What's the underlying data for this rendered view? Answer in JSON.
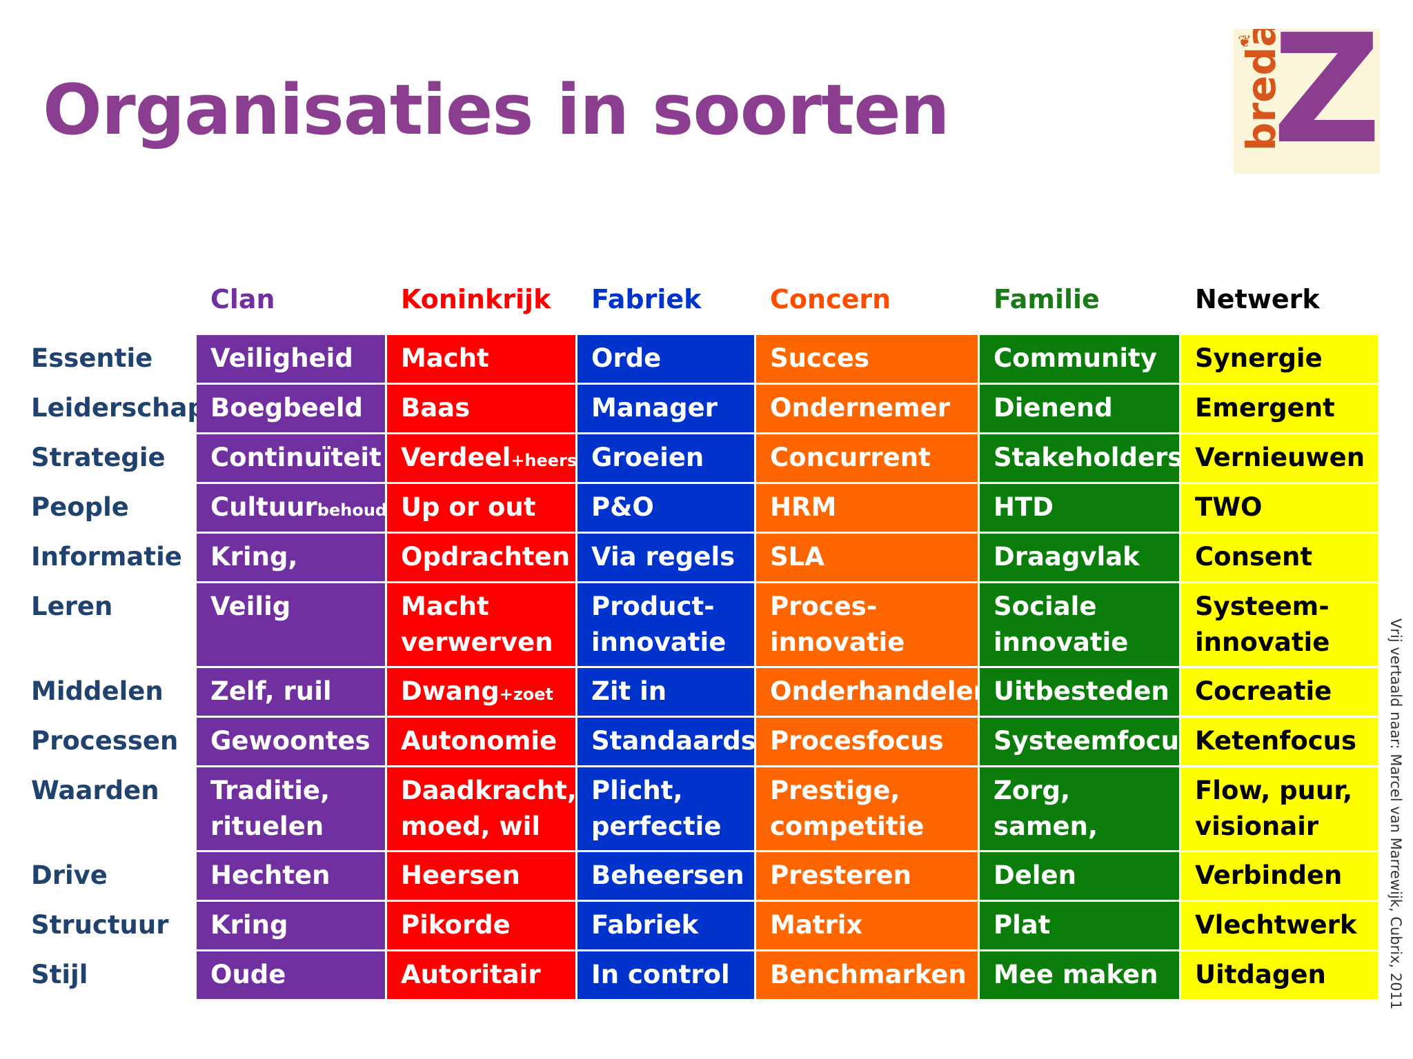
{
  "title": "Organisaties in soorten",
  "logo": {
    "word": "breda",
    "letter": "Z",
    "hearts": "❦"
  },
  "columns": [
    {
      "label": "Clan",
      "header_color": "#7030a0",
      "bg": "#7030a0",
      "text": "#ffffff"
    },
    {
      "label": "Koninkrijk",
      "header_color": "#ff0000",
      "bg": "#ff0000",
      "text": "#ffffff"
    },
    {
      "label": "Fabriek",
      "header_color": "#0033cc",
      "bg": "#0033cc",
      "text": "#ffffff"
    },
    {
      "label": "Concern",
      "header_color": "#ff4d00",
      "bg": "#ff6600",
      "text": "#ffffff"
    },
    {
      "label": "Familie",
      "header_color": "#1a7a1a",
      "bg": "#0a7d0a",
      "text": "#ffffff"
    },
    {
      "label": "Netwerk",
      "header_color": "#000000",
      "bg": "#ffff00",
      "text": "#000000"
    }
  ],
  "rows": [
    {
      "label": "Essentie",
      "cells": [
        [
          "Veiligheid"
        ],
        [
          "Macht"
        ],
        [
          "Orde"
        ],
        [
          "Succes"
        ],
        [
          "Community"
        ],
        [
          "Synergie"
        ]
      ]
    },
    {
      "label": "Leiderschap",
      "cells": [
        [
          "Boegbeeld"
        ],
        [
          "Baas"
        ],
        [
          "Manager"
        ],
        [
          "Ondernemer"
        ],
        [
          "Dienend"
        ],
        [
          "Emergent"
        ]
      ]
    },
    {
      "label": "Strategie",
      "cells": [
        [
          "Continuïteit"
        ],
        [
          "Verdeel",
          "+heers"
        ],
        [
          "Groeien"
        ],
        [
          "Concurrent"
        ],
        [
          "Stakeholders"
        ],
        [
          "Vernieuwen"
        ]
      ]
    },
    {
      "label": "People",
      "cells": [
        [
          "Cultuur",
          "behoud"
        ],
        [
          "Up or out"
        ],
        [
          "P&O"
        ],
        [
          "HRM"
        ],
        [
          "HTD"
        ],
        [
          "TWO"
        ]
      ]
    },
    {
      "label": "Informatie",
      "cells": [
        [
          "Kring, groep"
        ],
        [
          "Opdrachten"
        ],
        [
          "Via regels"
        ],
        [
          "SLA"
        ],
        [
          "Draagvlak"
        ],
        [
          "Consent"
        ]
      ]
    },
    {
      "label": "Leren",
      "cells": [
        [
          "Veilig"
        ],
        [
          "Macht verwerven"
        ],
        [
          "Product-innovatie"
        ],
        [
          "Proces-innovatie"
        ],
        [
          "Sociale innovatie"
        ],
        [
          "Systeem-innovatie"
        ]
      ]
    },
    {
      "label": "Middelen",
      "cells": [
        [
          "Zelf, ruil"
        ],
        [
          "Dwang",
          "+zoet"
        ],
        [
          "Zit in regels"
        ],
        [
          "Onderhandelen"
        ],
        [
          "Uitbesteden"
        ],
        [
          "Cocreatie"
        ]
      ]
    },
    {
      "label": "Processen",
      "cells": [
        [
          "Gewoontes"
        ],
        [
          "Autonomie"
        ],
        [
          "Standaards"
        ],
        [
          "Procesfocus"
        ],
        [
          "Systeemfocus"
        ],
        [
          "Ketenfocus"
        ]
      ]
    },
    {
      "label": "Waarden",
      "cells": [
        [
          "Traditie, rituelen"
        ],
        [
          "Daadkracht, moed, wil"
        ],
        [
          "Plicht, perfectie"
        ],
        [
          "Prestige, competitie"
        ],
        [
          "Zorg, samen, empathie"
        ],
        [
          "Flow, puur, visionair"
        ]
      ]
    },
    {
      "label": "Drive",
      "cells": [
        [
          "Hechten"
        ],
        [
          "Heersen"
        ],
        [
          "Beheersen"
        ],
        [
          "Presteren"
        ],
        [
          "Delen"
        ],
        [
          "Verbinden"
        ]
      ]
    },
    {
      "label": "Structuur",
      "cells": [
        [
          "Kring"
        ],
        [
          "Pikorde"
        ],
        [
          "Fabriek"
        ],
        [
          "Matrix"
        ],
        [
          "Plat"
        ],
        [
          "Vlechtwerk"
        ]
      ]
    },
    {
      "label": "Stijl",
      "cells": [
        [
          "Oude wijzen"
        ],
        [
          "Autoritair"
        ],
        [
          "In control"
        ],
        [
          "Benchmarken"
        ],
        [
          "Mee maken"
        ],
        [
          "Uitdagen"
        ]
      ]
    }
  ],
  "credit": "Vrij vertaald naar: Marcel van Marrewijk, Cubrix, 2011"
}
